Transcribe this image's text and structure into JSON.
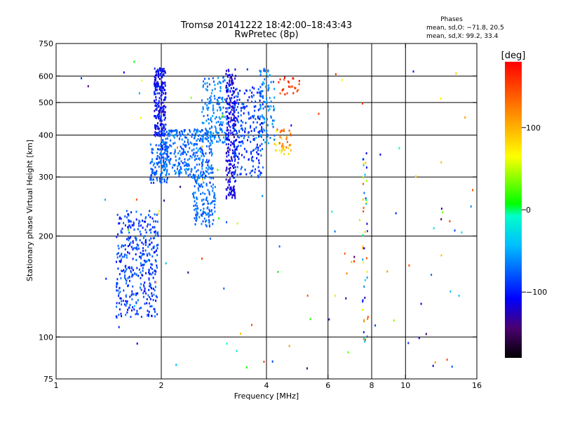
{
  "chart_data": {
    "type": "scatter",
    "title": "Tromsø 20141222 18:42:00–18:43:43",
    "subtitle": "RwPretec (8p)",
    "xlabel": "Frequency [MHz]",
    "ylabel": "Stationary phase Virtual Height [km]",
    "x_scale": "log",
    "y_scale": "log",
    "xlim": [
      1,
      16
    ],
    "ylim": [
      75,
      750
    ],
    "x_ticks": [
      1,
      2,
      4,
      6,
      8,
      10,
      16
    ],
    "y_ticks": [
      75,
      100,
      200,
      300,
      400,
      500,
      600,
      750
    ],
    "x_gridlines": [
      2,
      4,
      6,
      8,
      10
    ],
    "y_gridlines": [
      100,
      200,
      300,
      400,
      500,
      600
    ],
    "stats": {
      "heading": "Phases",
      "line1": "mean, sd,O: −71.8, 20.5",
      "line2": "mean, sd,X:  99.2, 33.4"
    },
    "colorbar": {
      "label": "[deg]",
      "range": [
        -180,
        180
      ],
      "ticks": [
        100,
        0,
        -100
      ],
      "tick_labels": [
        "100",
        "0",
        "−100"
      ]
    },
    "clusters": [
      {
        "x": [
          1.48,
          1.95
        ],
        "y": [
          115,
          240
        ],
        "n": 380,
        "phase": [
          -110,
          -65
        ]
      },
      {
        "x": [
          1.9,
          2.05
        ],
        "y": [
          400,
          640
        ],
        "n": 220,
        "phase": [
          -125,
          -85
        ]
      },
      {
        "x": [
          1.85,
          2.1
        ],
        "y": [
          290,
          380
        ],
        "n": 130,
        "phase": [
          -95,
          -60
        ]
      },
      {
        "x": [
          2.0,
          2.8
        ],
        "y": [
          300,
          420
        ],
        "n": 320,
        "phase": [
          -90,
          -55
        ]
      },
      {
        "x": [
          2.45,
          2.85
        ],
        "y": [
          215,
          300
        ],
        "n": 130,
        "phase": [
          -85,
          -60
        ]
      },
      {
        "x": [
          2.6,
          3.1
        ],
        "y": [
          380,
          600
        ],
        "n": 170,
        "phase": [
          -80,
          -50
        ]
      },
      {
        "x": [
          3.05,
          3.25
        ],
        "y": [
          260,
          640
        ],
        "n": 230,
        "phase": [
          -135,
          -95
        ]
      },
      {
        "x": [
          3.2,
          3.9
        ],
        "y": [
          300,
          560
        ],
        "n": 220,
        "phase": [
          -110,
          -70
        ]
      },
      {
        "x": [
          3.8,
          4.2
        ],
        "y": [
          380,
          640
        ],
        "n": 90,
        "phase": [
          -80,
          -45
        ]
      },
      {
        "x": [
          4.2,
          4.7
        ],
        "y": [
          350,
          420
        ],
        "n": 40,
        "phase": [
          60,
          150
        ]
      },
      {
        "x": [
          4.3,
          5.0
        ],
        "y": [
          520,
          600
        ],
        "n": 25,
        "phase": [
          130,
          175
        ]
      },
      {
        "x": [
          7.5,
          7.75
        ],
        "y": [
          95,
          360
        ],
        "n": 45,
        "phase": [
          -130,
          160
        ]
      },
      {
        "x": [
          1.15,
          16
        ],
        "y": [
          80,
          680
        ],
        "n": 110,
        "phase": [
          -150,
          160
        ]
      }
    ]
  }
}
